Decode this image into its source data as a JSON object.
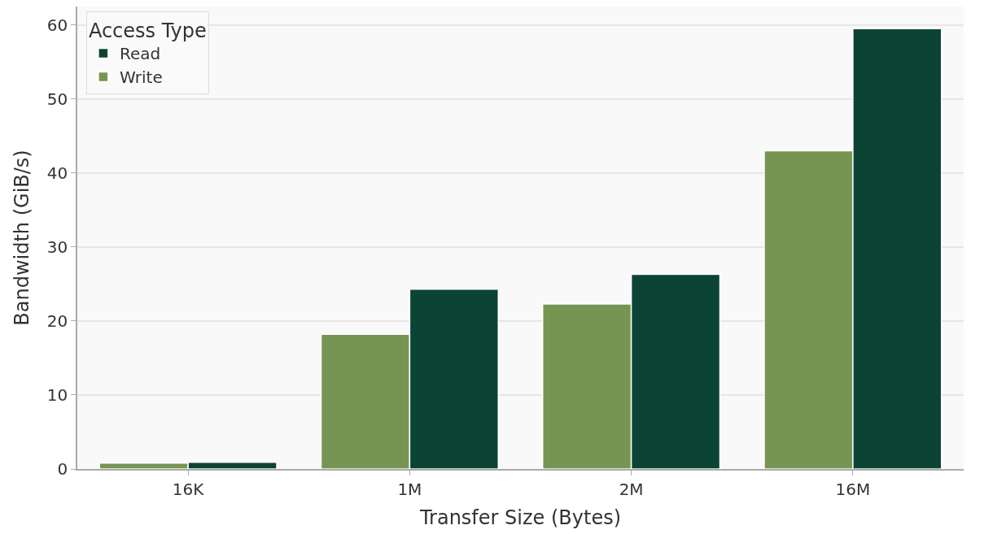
{
  "chart_data": {
    "type": "bar",
    "xlabel": "Transfer Size (Bytes)",
    "ylabel": "Bandwidth (GiB/s)",
    "legend_title": "Access Type",
    "categories": [
      "16K",
      "1M",
      "2M",
      "16M"
    ],
    "series": [
      {
        "name": "Write",
        "color": "#779552",
        "values": [
          0.8,
          18.2,
          22.3,
          43.0
        ]
      },
      {
        "name": "Read",
        "color": "#0b4434",
        "values": [
          0.9,
          24.3,
          26.3,
          59.5
        ]
      }
    ],
    "ylim": [
      0,
      62.5
    ],
    "yticks": [
      0,
      10,
      20,
      30,
      40,
      50,
      60
    ],
    "grid": "y",
    "legend": "top left"
  }
}
